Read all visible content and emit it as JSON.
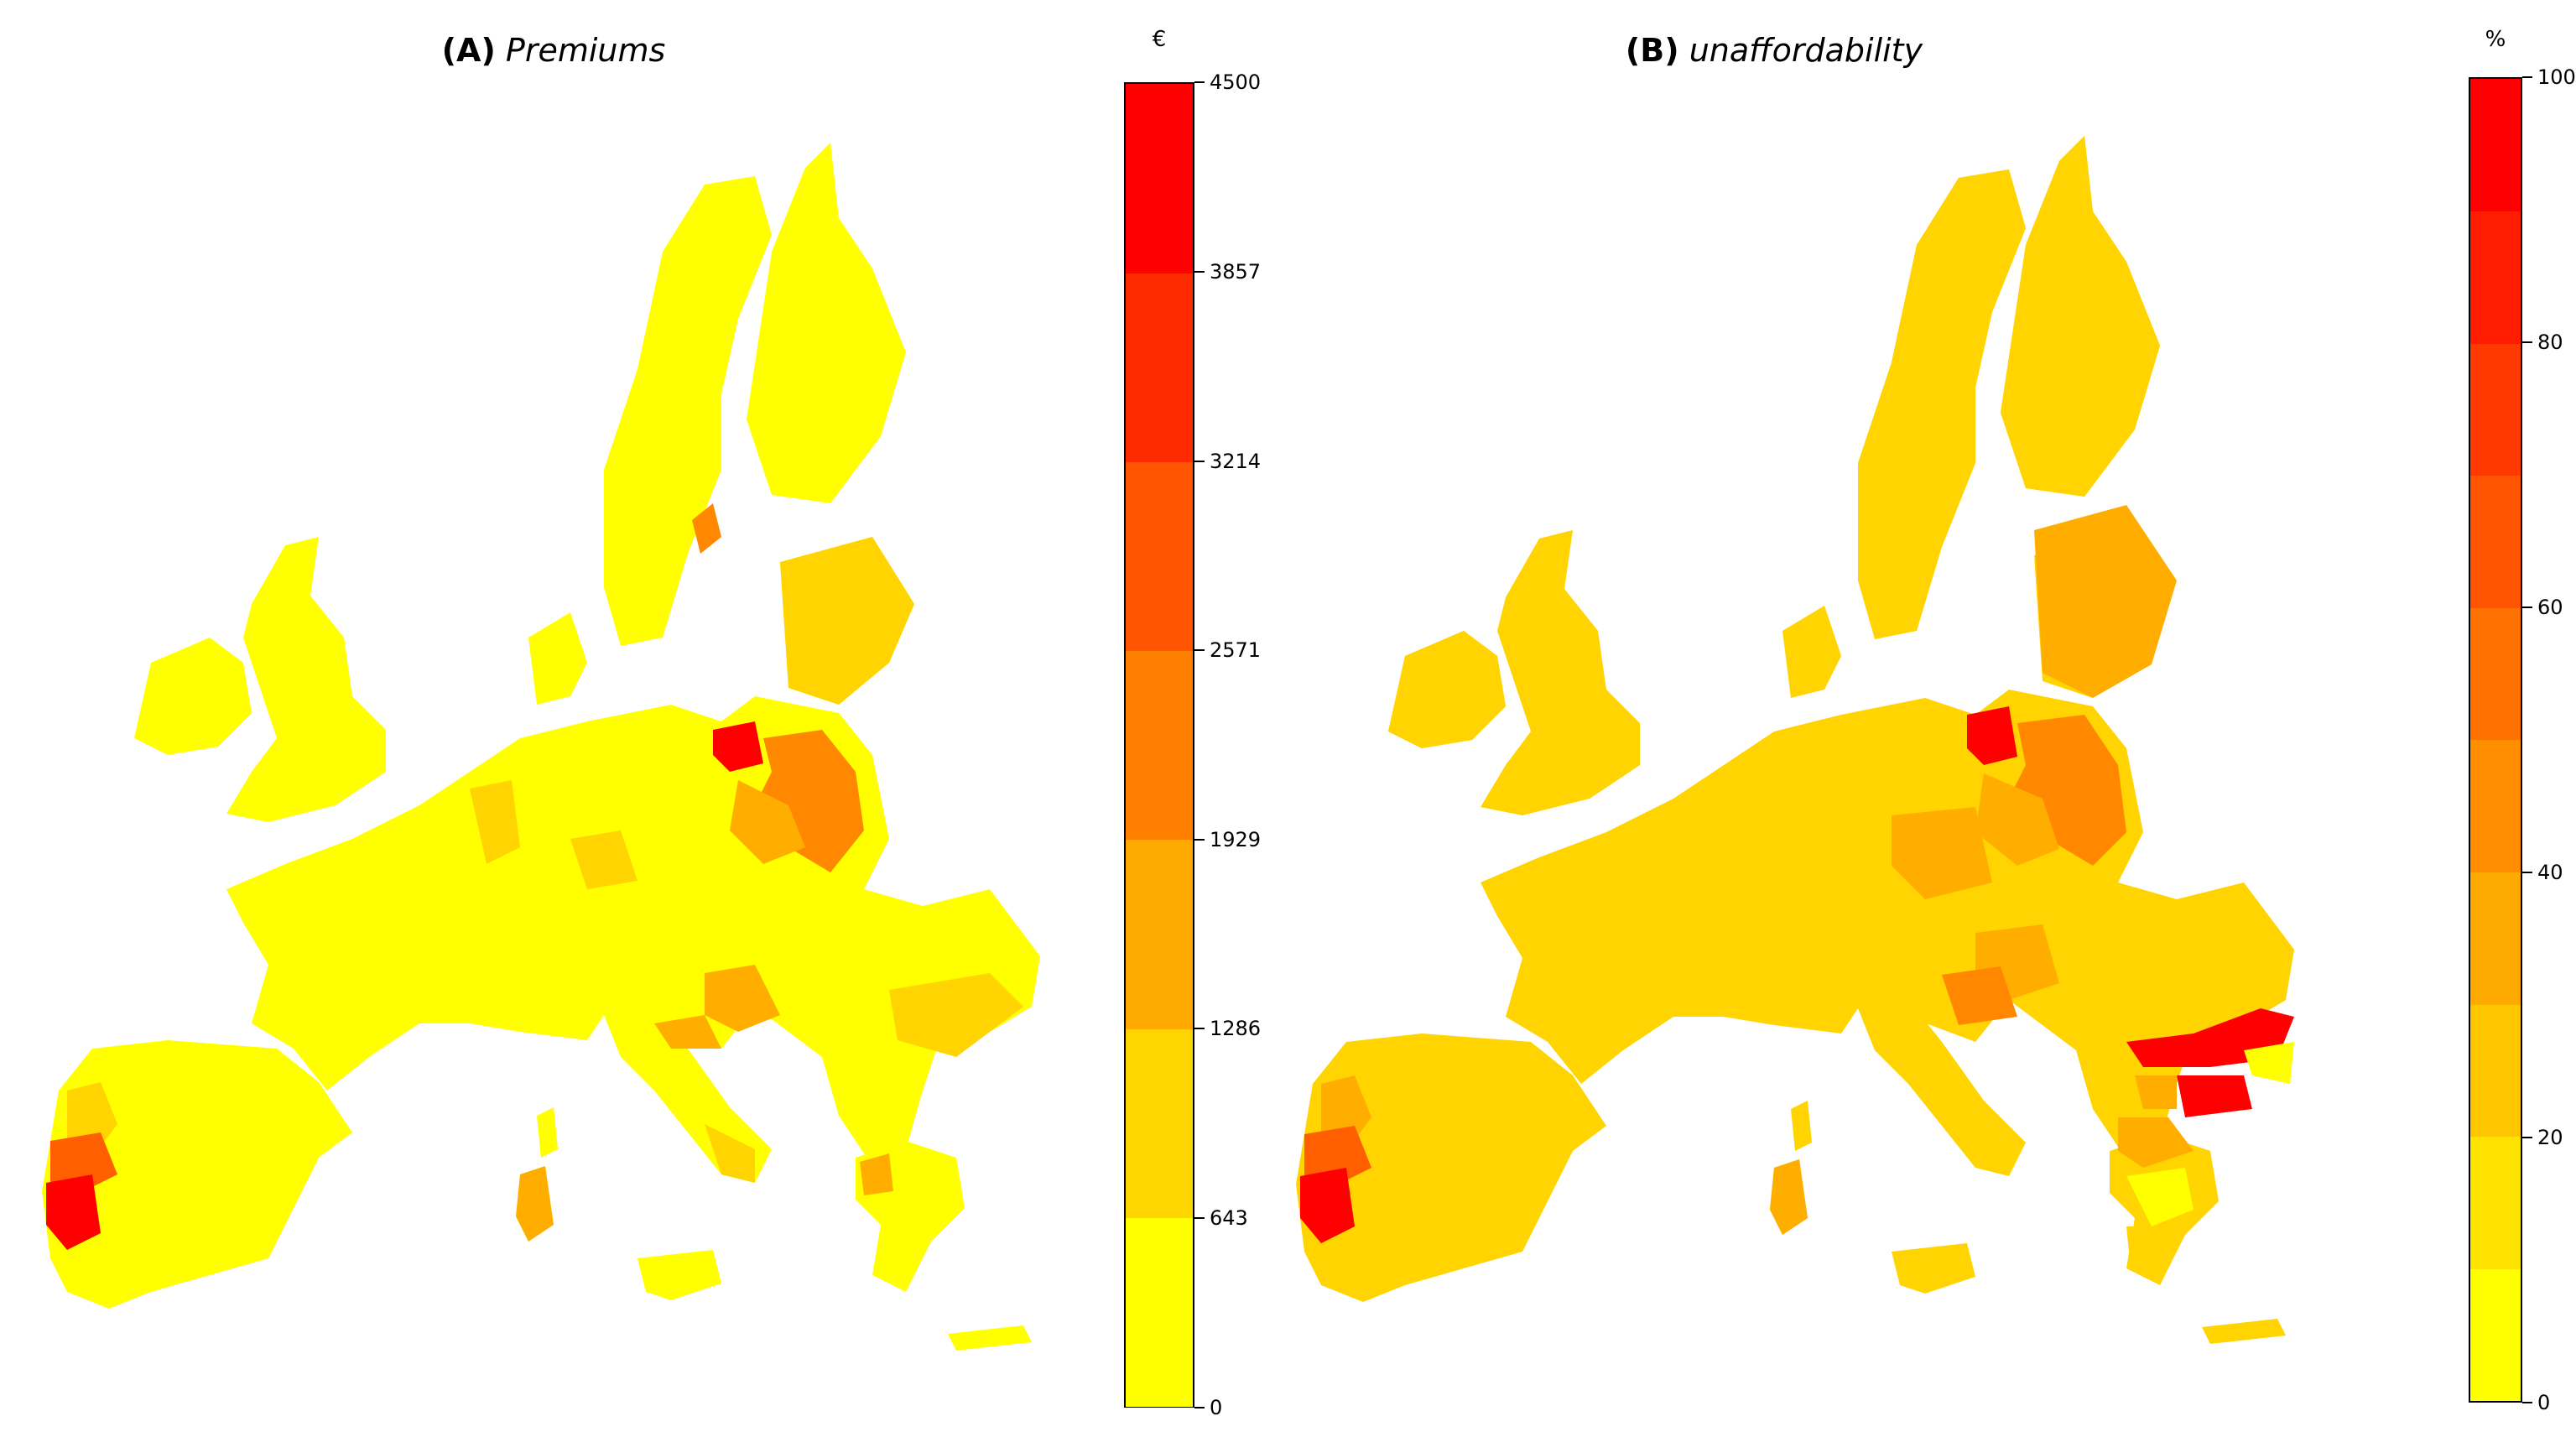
{
  "colors": {
    "scale": [
      "#ffff00",
      "#ffd700",
      "#ffae00",
      "#ff8800",
      "#ff5f00",
      "#ff2f00",
      "#ff0000"
    ],
    "yellow": "#ffff00",
    "gold": "#ffd400",
    "amber": "#ffae00",
    "orange": "#ff8800",
    "dark-orange": "#ff5f00",
    "red": "#ff0000"
  },
  "panels": [
    {
      "letter": "(A)",
      "title": "Premiums",
      "unit": "€",
      "ticks": [
        "0",
        "643",
        "1286",
        "1929",
        "2571",
        "3214",
        "3857",
        "4500"
      ],
      "tick_values": [
        0,
        643,
        1286,
        1929,
        2571,
        3214,
        3857,
        4500
      ],
      "min": 0,
      "max": 4500,
      "bins": 7
    },
    {
      "letter": "(B)",
      "title": "unaffordability",
      "unit": "%",
      "ticks": [
        "0",
        "20",
        "40",
        "60",
        "80",
        "100"
      ],
      "tick_values": [
        0,
        20,
        40,
        60,
        80,
        100
      ],
      "min": 0,
      "max": 100,
      "bins": 10
    }
  ]
}
